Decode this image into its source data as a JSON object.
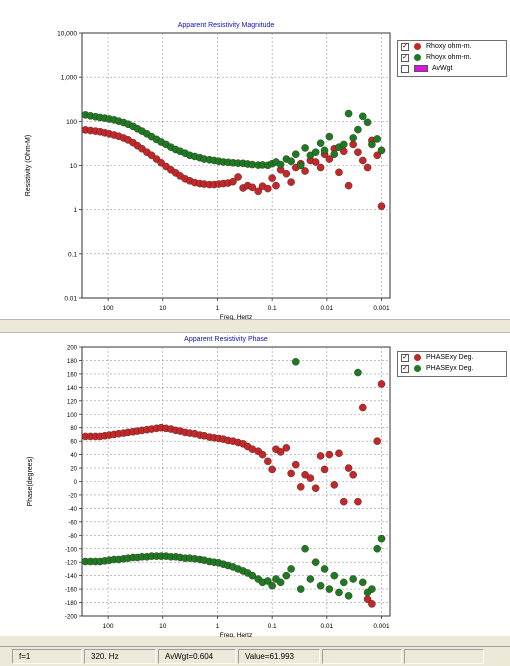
{
  "colors": {
    "series_red": "#c0282a",
    "series_green": "#1d7a22",
    "title_blue": "#1010b0",
    "avwgt_fill": "#e010e0"
  },
  "chart_data": [
    {
      "type": "scatter",
      "title": "Apparent Resistivity Magnitude",
      "xlabel": "Freq, Hertz",
      "ylabel": "Resistivity (Ohm-M)",
      "x_scale": "log-reversed",
      "y_scale": "log",
      "xlim": [
        300,
        0.0007
      ],
      "ylim": [
        0.01,
        10000
      ],
      "x_ticks": [
        "100",
        "10",
        "1",
        "0.1",
        "0.01",
        "0.001"
      ],
      "y_ticks": [
        "10,000",
        "1,000",
        "100",
        "10",
        "1",
        "0.1",
        "0.01"
      ],
      "grid": true,
      "legend_position": "top-right",
      "legend": [
        {
          "label": "Rhoxy ohm-m.",
          "checked": true,
          "marker": "red-dot"
        },
        {
          "label": "Rhoyx ohm-m.",
          "checked": true,
          "marker": "green-dot"
        },
        {
          "label": "AvWgt",
          "checked": false,
          "marker": "magenta-box"
        }
      ],
      "series": [
        {
          "name": "Rhoxy ohm-m.",
          "color": "#c0282a",
          "points": [
            [
              320,
              65
            ],
            [
              260,
              64
            ],
            [
              210,
              62
            ],
            [
              170,
              60
            ],
            [
              140,
              58
            ],
            [
              115,
              55
            ],
            [
              95,
              52
            ],
            [
              78,
              49
            ],
            [
              64,
              46
            ],
            [
              52,
              42
            ],
            [
              43,
              38
            ],
            [
              35,
              33
            ],
            [
              29,
              28
            ],
            [
              24,
              24
            ],
            [
              19.5,
              20
            ],
            [
              16,
              17
            ],
            [
              13,
              14
            ],
            [
              10.7,
              11.5
            ],
            [
              8.7,
              9.5
            ],
            [
              7.1,
              8
            ],
            [
              5.8,
              6.8
            ],
            [
              4.8,
              5.8
            ],
            [
              3.9,
              5
            ],
            [
              3.2,
              4.5
            ],
            [
              2.6,
              4.1
            ],
            [
              2.1,
              3.9
            ],
            [
              1.75,
              3.8
            ],
            [
              1.4,
              3.7
            ],
            [
              1.15,
              3.7
            ],
            [
              0.95,
              3.8
            ],
            [
              0.78,
              3.9
            ],
            [
              0.64,
              4
            ],
            [
              0.52,
              4.3
            ],
            [
              0.42,
              5.5
            ],
            [
              0.34,
              3.1
            ],
            [
              0.28,
              3.5
            ],
            [
              0.23,
              3.2
            ],
            [
              0.18,
              2.6
            ],
            [
              0.15,
              3.4
            ],
            [
              0.12,
              3
            ],
            [
              0.1,
              5.2
            ],
            [
              0.085,
              3.5
            ],
            [
              0.07,
              8
            ],
            [
              0.055,
              6.5
            ],
            [
              0.045,
              4.2
            ],
            [
              0.037,
              9
            ],
            [
              0.03,
              11
            ],
            [
              0.025,
              7.5
            ],
            [
              0.02,
              13
            ],
            [
              0.016,
              12
            ],
            [
              0.013,
              9
            ],
            [
              0.011,
              18
            ],
            [
              0.009,
              14
            ],
            [
              0.0073,
              24
            ],
            [
              0.006,
              7
            ],
            [
              0.0049,
              21
            ],
            [
              0.004,
              3.5
            ],
            [
              0.0033,
              30
            ],
            [
              0.0027,
              20
            ],
            [
              0.0022,
              13
            ],
            [
              0.0018,
              9
            ],
            [
              0.0015,
              37
            ],
            [
              0.0012,
              17
            ],
            [
              0.001,
              1.2
            ]
          ]
        },
        {
          "name": "Rhoyx ohm-m.",
          "color": "#1d7a22",
          "points": [
            [
              320,
              145
            ],
            [
              260,
              140
            ],
            [
              210,
              133
            ],
            [
              170,
              127
            ],
            [
              140,
              122
            ],
            [
              115,
              118
            ],
            [
              95,
              113
            ],
            [
              78,
              108
            ],
            [
              64,
              101
            ],
            [
              52,
              94
            ],
            [
              43,
              86
            ],
            [
              35,
              77
            ],
            [
              29,
              68
            ],
            [
              24,
              60
            ],
            [
              19.5,
              52
            ],
            [
              16,
              45
            ],
            [
              13,
              39
            ],
            [
              10.7,
              34
            ],
            [
              8.7,
              30
            ],
            [
              7.1,
              26
            ],
            [
              5.8,
              23
            ],
            [
              4.8,
              21
            ],
            [
              3.9,
              19
            ],
            [
              3.2,
              17
            ],
            [
              2.6,
              16
            ],
            [
              2.1,
              15
            ],
            [
              1.75,
              14
            ],
            [
              1.4,
              13.5
            ],
            [
              1.15,
              13
            ],
            [
              0.95,
              12.5
            ],
            [
              0.78,
              12
            ],
            [
              0.64,
              11.8
            ],
            [
              0.52,
              11.5
            ],
            [
              0.42,
              11.3
            ],
            [
              0.34,
              11.2
            ],
            [
              0.28,
              10.8
            ],
            [
              0.23,
              10.5
            ],
            [
              0.18,
              10.2
            ],
            [
              0.15,
              10.3
            ],
            [
              0.12,
              10.1
            ],
            [
              0.1,
              11
            ],
            [
              0.085,
              12
            ],
            [
              0.07,
              10.5
            ],
            [
              0.055,
              14
            ],
            [
              0.045,
              12.5
            ],
            [
              0.037,
              18
            ],
            [
              0.03,
              10
            ],
            [
              0.025,
              25
            ],
            [
              0.02,
              17
            ],
            [
              0.016,
              20
            ],
            [
              0.013,
              32
            ],
            [
              0.011,
              22
            ],
            [
              0.009,
              45
            ],
            [
              0.0073,
              18
            ],
            [
              0.006,
              26
            ],
            [
              0.0049,
              30
            ],
            [
              0.004,
              150
            ],
            [
              0.0033,
              42
            ],
            [
              0.0027,
              65
            ],
            [
              0.0022,
              130
            ],
            [
              0.0018,
              95
            ],
            [
              0.0015,
              30
            ],
            [
              0.0012,
              40
            ],
            [
              0.001,
              22
            ]
          ]
        }
      ]
    },
    {
      "type": "scatter",
      "title": "Apparent Resistivity Phase",
      "xlabel": "Freq, Hertz",
      "ylabel": "Phase(degrees)",
      "x_scale": "log-reversed",
      "y_scale": "linear",
      "xlim": [
        300,
        0.0007
      ],
      "ylim": [
        -200,
        200
      ],
      "x_ticks": [
        "100",
        "10",
        "1",
        "0.1",
        "0.01",
        "0.001"
      ],
      "y_ticks": [
        "200",
        "180",
        "160",
        "140",
        "120",
        "100",
        "80",
        "60",
        "40",
        "20",
        "0",
        "-20",
        "-40",
        "-60",
        "-80",
        "-100",
        "-120",
        "-140",
        "-160",
        "-180",
        "-200"
      ],
      "grid": true,
      "legend_position": "top-right",
      "legend": [
        {
          "label": "PHASExy Deg.",
          "checked": true,
          "marker": "red-dot"
        },
        {
          "label": "PHASEyx Deg.",
          "checked": true,
          "marker": "green-dot"
        }
      ],
      "series": [
        {
          "name": "PHASExy Deg.",
          "color": "#c0282a",
          "points": [
            [
              320,
              68
            ],
            [
              260,
              67
            ],
            [
              210,
              67
            ],
            [
              170,
              67
            ],
            [
              140,
              67
            ],
            [
              115,
              68
            ],
            [
              95,
              69
            ],
            [
              78,
              70
            ],
            [
              64,
              71
            ],
            [
              52,
              72
            ],
            [
              43,
              73
            ],
            [
              35,
              74
            ],
            [
              29,
              75
            ],
            [
              24,
              76
            ],
            [
              19.5,
              77
            ],
            [
              16,
              78
            ],
            [
              13,
              79
            ],
            [
              10.7,
              80
            ],
            [
              8.7,
              79
            ],
            [
              7.1,
              78
            ],
            [
              5.8,
              76
            ],
            [
              4.8,
              75
            ],
            [
              3.9,
              73
            ],
            [
              3.2,
              72
            ],
            [
              2.6,
              71
            ],
            [
              2.1,
              69
            ],
            [
              1.75,
              68
            ],
            [
              1.4,
              66
            ],
            [
              1.15,
              65
            ],
            [
              0.95,
              64
            ],
            [
              0.78,
              63
            ],
            [
              0.64,
              61
            ],
            [
              0.52,
              60
            ],
            [
              0.42,
              58
            ],
            [
              0.34,
              56
            ],
            [
              0.28,
              52
            ],
            [
              0.23,
              48
            ],
            [
              0.18,
              45
            ],
            [
              0.15,
              40
            ],
            [
              0.12,
              30
            ],
            [
              0.1,
              18
            ],
            [
              0.085,
              48
            ],
            [
              0.07,
              44
            ],
            [
              0.055,
              50
            ],
            [
              0.045,
              12
            ],
            [
              0.037,
              25
            ],
            [
              0.03,
              -8
            ],
            [
              0.025,
              10
            ],
            [
              0.02,
              5
            ],
            [
              0.016,
              -10
            ],
            [
              0.013,
              38
            ],
            [
              0.011,
              18
            ],
            [
              0.009,
              40
            ],
            [
              0.0073,
              -5
            ],
            [
              0.006,
              42
            ],
            [
              0.0049,
              -30
            ],
            [
              0.004,
              20
            ],
            [
              0.0033,
              10
            ],
            [
              0.0027,
              -30
            ],
            [
              0.0022,
              110
            ],
            [
              0.0018,
              -175
            ],
            [
              0.0015,
              -182
            ],
            [
              0.0012,
              60
            ],
            [
              0.001,
              145
            ]
          ]
        },
        {
          "name": "PHASEyx Deg.",
          "color": "#1d7a22",
          "points": [
            [
              320,
              -119
            ],
            [
              260,
              -119
            ],
            [
              210,
              -119
            ],
            [
              170,
              -119
            ],
            [
              140,
              -119
            ],
            [
              115,
              -118
            ],
            [
              95,
              -117
            ],
            [
              78,
              -116
            ],
            [
              64,
              -116
            ],
            [
              52,
              -115
            ],
            [
              43,
              -114
            ],
            [
              35,
              -113
            ],
            [
              29,
              -113
            ],
            [
              24,
              -112
            ],
            [
              19.5,
              -112
            ],
            [
              16,
              -111
            ],
            [
              13,
              -111
            ],
            [
              10.7,
              -111
            ],
            [
              8.7,
              -111
            ],
            [
              7.1,
              -112
            ],
            [
              5.8,
              -112
            ],
            [
              4.8,
              -113
            ],
            [
              3.9,
              -114
            ],
            [
              3.2,
              -114
            ],
            [
              2.6,
              -115
            ],
            [
              2.1,
              -116
            ],
            [
              1.75,
              -117
            ],
            [
              1.4,
              -119
            ],
            [
              1.15,
              -120
            ],
            [
              0.95,
              -121
            ],
            [
              0.78,
              -123
            ],
            [
              0.64,
              -125
            ],
            [
              0.52,
              -127
            ],
            [
              0.42,
              -130
            ],
            [
              0.34,
              -133
            ],
            [
              0.28,
              -136
            ],
            [
              0.23,
              -140
            ],
            [
              0.18,
              -145
            ],
            [
              0.15,
              -150
            ],
            [
              0.12,
              -148
            ],
            [
              0.1,
              -155
            ],
            [
              0.085,
              -145
            ],
            [
              0.07,
              -150
            ],
            [
              0.055,
              -140
            ],
            [
              0.045,
              -130
            ],
            [
              0.037,
              178
            ],
            [
              0.03,
              -160
            ],
            [
              0.025,
              -100
            ],
            [
              0.02,
              -145
            ],
            [
              0.016,
              -120
            ],
            [
              0.013,
              -155
            ],
            [
              0.011,
              -130
            ],
            [
              0.009,
              -160
            ],
            [
              0.0073,
              -140
            ],
            [
              0.006,
              -165
            ],
            [
              0.0049,
              -150
            ],
            [
              0.004,
              -170
            ],
            [
              0.0033,
              -145
            ],
            [
              0.0027,
              162
            ],
            [
              0.0022,
              -150
            ],
            [
              0.0018,
              -165
            ],
            [
              0.0015,
              -160
            ],
            [
              0.0012,
              -100
            ],
            [
              0.001,
              -85
            ]
          ]
        }
      ]
    }
  ],
  "statusbar": {
    "cell1": "f=1",
    "cell2": "320. Hz",
    "cell3": "AvWgt=0.604",
    "cell4": "Value=61.993",
    "cell5": "",
    "cell6": ""
  }
}
